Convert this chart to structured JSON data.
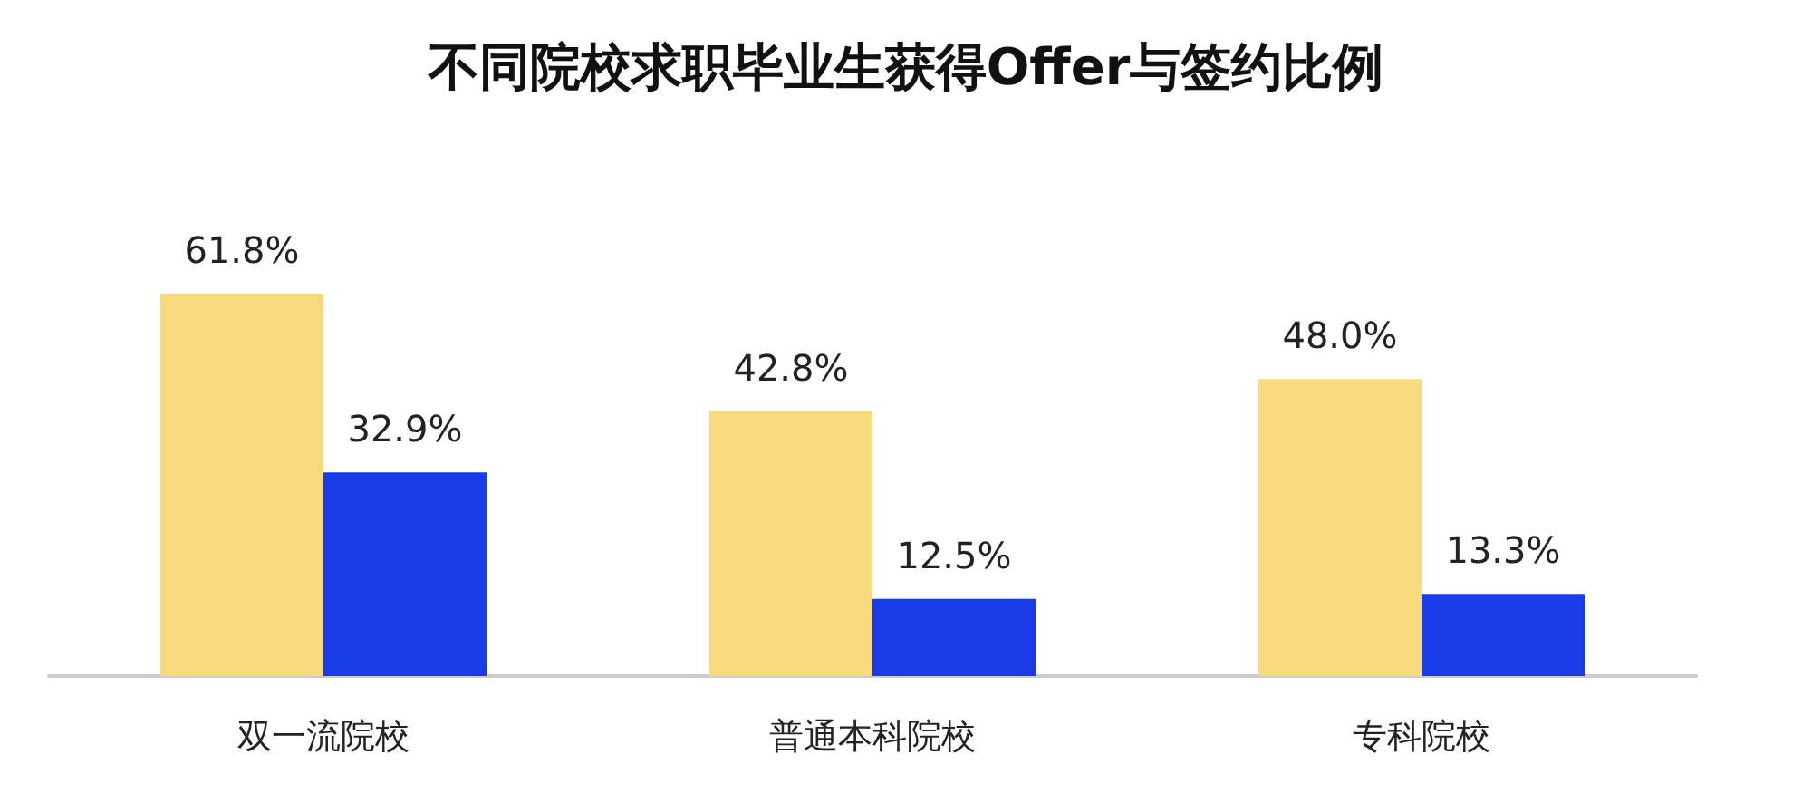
{
  "chart_data": {
    "type": "bar",
    "title": "不同院校求职毕业生获得Offer与签约比例",
    "categories": [
      "双一流院校",
      "普通本科院校",
      "专科院校"
    ],
    "series": [
      {
        "color": "#f7da7b",
        "values": [
          61.8,
          42.8,
          48.0
        ],
        "value_labels": [
          "61.8%",
          "42.8%",
          "48.0%"
        ]
      },
      {
        "color": "#1a3be8",
        "values": [
          32.9,
          12.5,
          13.3
        ],
        "value_labels": [
          "32.9%",
          "12.5%",
          "13.3%"
        ]
      }
    ]
  }
}
